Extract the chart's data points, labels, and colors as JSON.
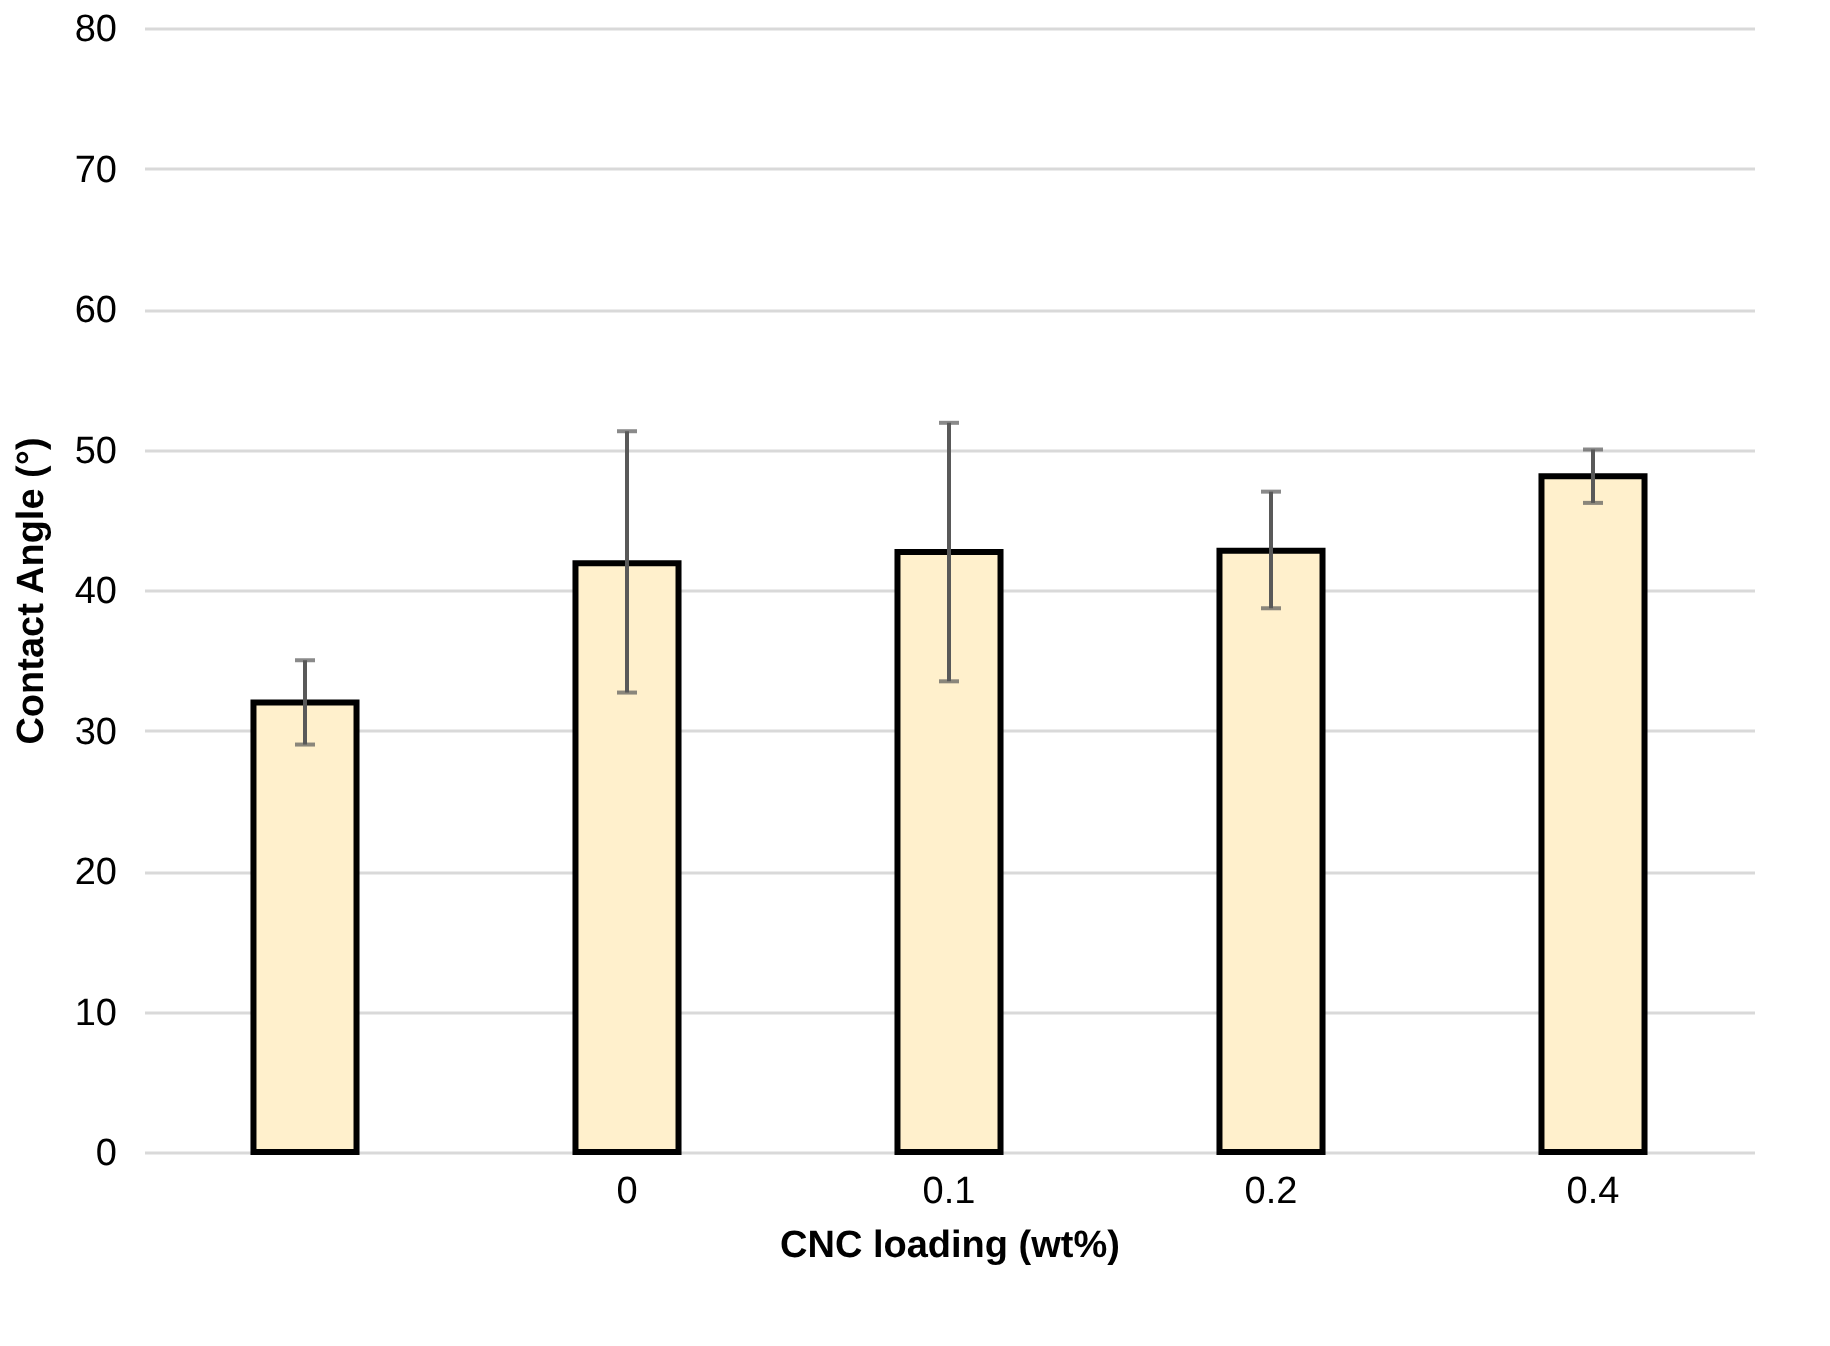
{
  "chart_data": {
    "type": "bar",
    "xlabel": "CNC loading (wt%)",
    "ylabel": "Contact Angle (°)",
    "categories": [
      null,
      "0",
      "0.1",
      "0.2",
      "0.4"
    ],
    "values": [
      32.0,
      41.9,
      42.7,
      42.8,
      48.1
    ],
    "errors": [
      [
        29.0,
        35.0
      ],
      [
        32.7,
        51.3
      ],
      [
        33.5,
        51.9
      ],
      [
        38.7,
        47.0
      ],
      [
        46.2,
        50.0
      ]
    ],
    "color": "#fff0cc",
    "ylim": [
      0,
      80
    ],
    "yticks": [
      0,
      10,
      20,
      30,
      40,
      50,
      60,
      70,
      80
    ],
    "grid": "y"
  }
}
